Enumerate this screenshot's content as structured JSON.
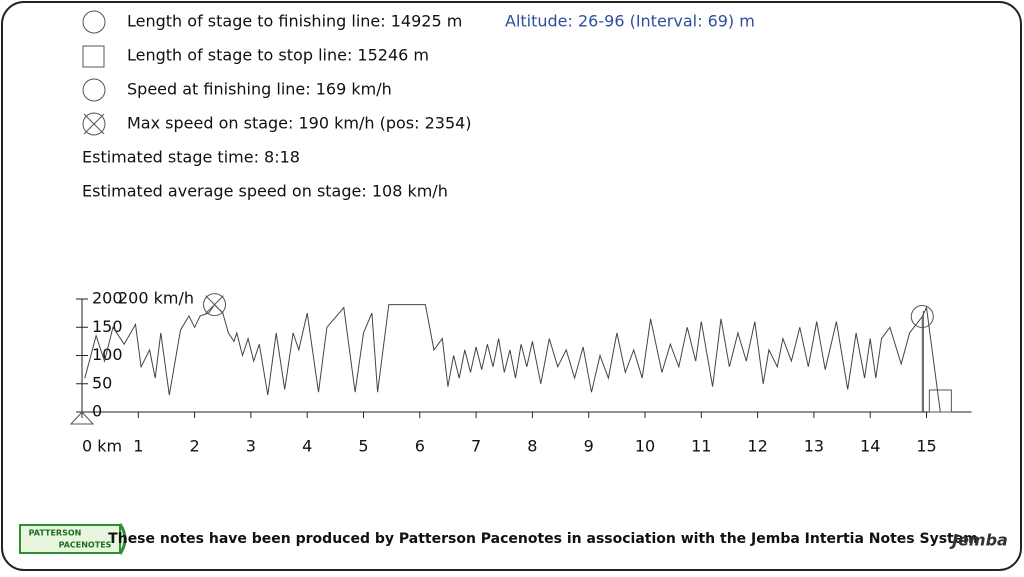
{
  "info": {
    "finish_length": "Length of stage to finishing line: 14925 m",
    "stop_length": "Length of stage to stop line: 15246 m",
    "finish_speed": "Speed at finishing line: 169 km/h",
    "max_speed": "Max speed on stage: 190 km/h (pos: 2354)",
    "stage_time": "Estimated stage time: 8:18",
    "avg_speed": "Estimated average speed on stage: 108 km/h",
    "altitude": "Altitude: 26-96 (Interval: 69) m"
  },
  "footer": {
    "note": "These notes have been produced by Patterson Pacenotes in association with the Jemba Intertia Notes System",
    "logo_left_top": "PATTERSON",
    "logo_left_bottom": "PACENOTES",
    "logo_right": "Jemba"
  },
  "chart_data": {
    "type": "line",
    "color": "#444444",
    "annotation": "200 km/h",
    "xlim": [
      0,
      15.8
    ],
    "ylim": [
      0,
      200
    ],
    "xticks": [
      {
        "value": 0,
        "label": "0 km"
      },
      1,
      2,
      3,
      4,
      5,
      6,
      7,
      8,
      9,
      10,
      11,
      12,
      13,
      14,
      15
    ],
    "yticks": [
      0,
      50,
      100,
      150,
      200
    ],
    "x": [
      0.05,
      0.25,
      0.4,
      0.55,
      0.75,
      0.95,
      1.05,
      1.2,
      1.3,
      1.4,
      1.55,
      1.75,
      1.9,
      2.0,
      2.1,
      2.25,
      2.354,
      2.5,
      2.6,
      2.7,
      2.75,
      2.85,
      2.95,
      3.05,
      3.15,
      3.3,
      3.45,
      3.6,
      3.75,
      3.85,
      4.0,
      4.2,
      4.35,
      4.65,
      4.85,
      5.0,
      5.15,
      5.25,
      5.45,
      6.1,
      6.25,
      6.4,
      6.5,
      6.6,
      6.7,
      6.8,
      6.9,
      7.0,
      7.1,
      7.2,
      7.3,
      7.4,
      7.5,
      7.6,
      7.7,
      7.8,
      7.9,
      8.0,
      8.15,
      8.3,
      8.45,
      8.6,
      8.75,
      8.9,
      9.05,
      9.2,
      9.35,
      9.5,
      9.65,
      9.8,
      9.95,
      10.1,
      10.3,
      10.45,
      10.6,
      10.75,
      10.9,
      11.0,
      11.2,
      11.35,
      11.5,
      11.65,
      11.8,
      11.95,
      12.1,
      12.2,
      12.35,
      12.45,
      12.6,
      12.75,
      12.9,
      13.05,
      13.2,
      13.4,
      13.6,
      13.75,
      13.9,
      14.0,
      14.1,
      14.2,
      14.35,
      14.55,
      14.7,
      14.925,
      15.0,
      15.246
    ],
    "values": [
      60,
      135,
      90,
      150,
      120,
      155,
      80,
      110,
      60,
      140,
      30,
      145,
      170,
      150,
      170,
      175,
      190,
      175,
      140,
      125,
      140,
      100,
      130,
      90,
      120,
      30,
      140,
      40,
      140,
      110,
      175,
      35,
      150,
      185,
      35,
      140,
      175,
      35,
      190,
      190,
      110,
      130,
      45,
      100,
      60,
      110,
      70,
      115,
      75,
      120,
      80,
      130,
      70,
      110,
      60,
      120,
      80,
      125,
      50,
      130,
      80,
      110,
      60,
      115,
      35,
      100,
      60,
      140,
      70,
      110,
      60,
      165,
      70,
      120,
      80,
      150,
      90,
      160,
      45,
      165,
      80,
      140,
      90,
      160,
      50,
      110,
      80,
      130,
      90,
      150,
      80,
      160,
      75,
      160,
      40,
      140,
      60,
      130,
      60,
      130,
      150,
      85,
      140,
      169,
      185,
      0
    ],
    "markers": [
      {
        "x": 0,
        "y": 0,
        "shape": "triangle"
      },
      {
        "x": 2.354,
        "y": 190,
        "shape": "crossed-circle"
      },
      {
        "x": 14.925,
        "y": 169,
        "shape": "circle"
      },
      {
        "x": 15.246,
        "y": 0,
        "shape": "square"
      }
    ]
  }
}
